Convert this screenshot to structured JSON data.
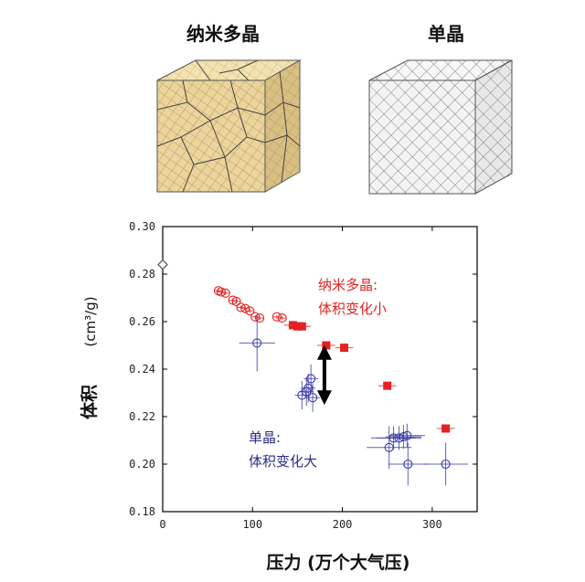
{
  "top_labels": {
    "left": "纳米多晶",
    "right": "单晶"
  },
  "annotations": {
    "nano_line1": "纳米多晶:",
    "nano_line2": "体积变化小",
    "single_line1": "单晶:",
    "single_line2": "体积变化大"
  },
  "colors": {
    "nano": "#e32222",
    "single": "#3a3aa6",
    "nano_cube": "#f0d9a0",
    "single_cube": "#f2f2f2"
  },
  "chart_data": {
    "type": "scatter",
    "xlabel": "压力 (万个大气压)",
    "ylabel_main": "体积",
    "ylabel_unit": "(cm³/g)",
    "xlim": [
      0,
      350
    ],
    "ylim": [
      0.18,
      0.3
    ],
    "xticks": [
      "0",
      "100",
      "200",
      "300"
    ],
    "yticks": [
      "0.18",
      "0.20",
      "0.22",
      "0.24",
      "0.26",
      "0.28",
      "0.30"
    ],
    "grid": false,
    "series": [
      {
        "marker": "open-circle",
        "color": "#e32222",
        "points": [
          {
            "x": 62,
            "y": 0.273
          },
          {
            "x": 65,
            "y": 0.2725
          },
          {
            "x": 70,
            "y": 0.272
          },
          {
            "x": 78,
            "y": 0.269
          },
          {
            "x": 82,
            "y": 0.2685
          },
          {
            "x": 87,
            "y": 0.266
          },
          {
            "x": 92,
            "y": 0.2655
          },
          {
            "x": 97,
            "y": 0.2645
          },
          {
            "x": 103,
            "y": 0.262
          },
          {
            "x": 108,
            "y": 0.2615
          },
          {
            "x": 127,
            "y": 0.262
          },
          {
            "x": 133,
            "y": 0.2615
          }
        ],
        "xerr": 4,
        "yerr": 0.0008
      },
      {
        "marker": "filled-square",
        "color": "#e32222",
        "points": [
          {
            "x": 145,
            "y": 0.2585
          },
          {
            "x": 150,
            "y": 0.258
          },
          {
            "x": 155,
            "y": 0.258
          },
          {
            "x": 182,
            "y": 0.25
          },
          {
            "x": 202,
            "y": 0.249
          },
          {
            "x": 250,
            "y": 0.233
          },
          {
            "x": 315,
            "y": 0.215
          }
        ],
        "xerr": 10,
        "yerr": 0.0015
      },
      {
        "marker": "open-circle-errorbar",
        "color": "#3a3aa6",
        "points": [
          {
            "x": 105,
            "y": 0.251,
            "xerr": 20,
            "yerr": 0.012
          },
          {
            "x": 155,
            "y": 0.229,
            "xerr": 8,
            "yerr": 0.006
          },
          {
            "x": 160,
            "y": 0.2305,
            "xerr": 8,
            "yerr": 0.006
          },
          {
            "x": 162,
            "y": 0.232,
            "xerr": 8,
            "yerr": 0.006
          },
          {
            "x": 165,
            "y": 0.236,
            "xerr": 8,
            "yerr": 0.006
          },
          {
            "x": 167,
            "y": 0.228,
            "xerr": 8,
            "yerr": 0.006
          },
          {
            "x": 252,
            "y": 0.207,
            "xerr": 25,
            "yerr": 0.009
          },
          {
            "x": 257,
            "y": 0.211,
            "xerr": 25,
            "yerr": 0.005
          },
          {
            "x": 263,
            "y": 0.211,
            "xerr": 25,
            "yerr": 0.005
          },
          {
            "x": 268,
            "y": 0.2115,
            "xerr": 20,
            "yerr": 0.005
          },
          {
            "x": 272,
            "y": 0.212,
            "xerr": 20,
            "yerr": 0.005
          },
          {
            "x": 273,
            "y": 0.2,
            "xerr": 22,
            "yerr": 0.009
          },
          {
            "x": 315,
            "y": 0.2,
            "xerr": 25,
            "yerr": 0.009
          }
        ]
      },
      {
        "marker": "open-diamond",
        "color": "#555555",
        "points": [
          {
            "x": 0,
            "y": 0.284
          }
        ]
      }
    ],
    "arrow": {
      "x": 180,
      "y_from": 0.247,
      "y_to": 0.228
    }
  }
}
